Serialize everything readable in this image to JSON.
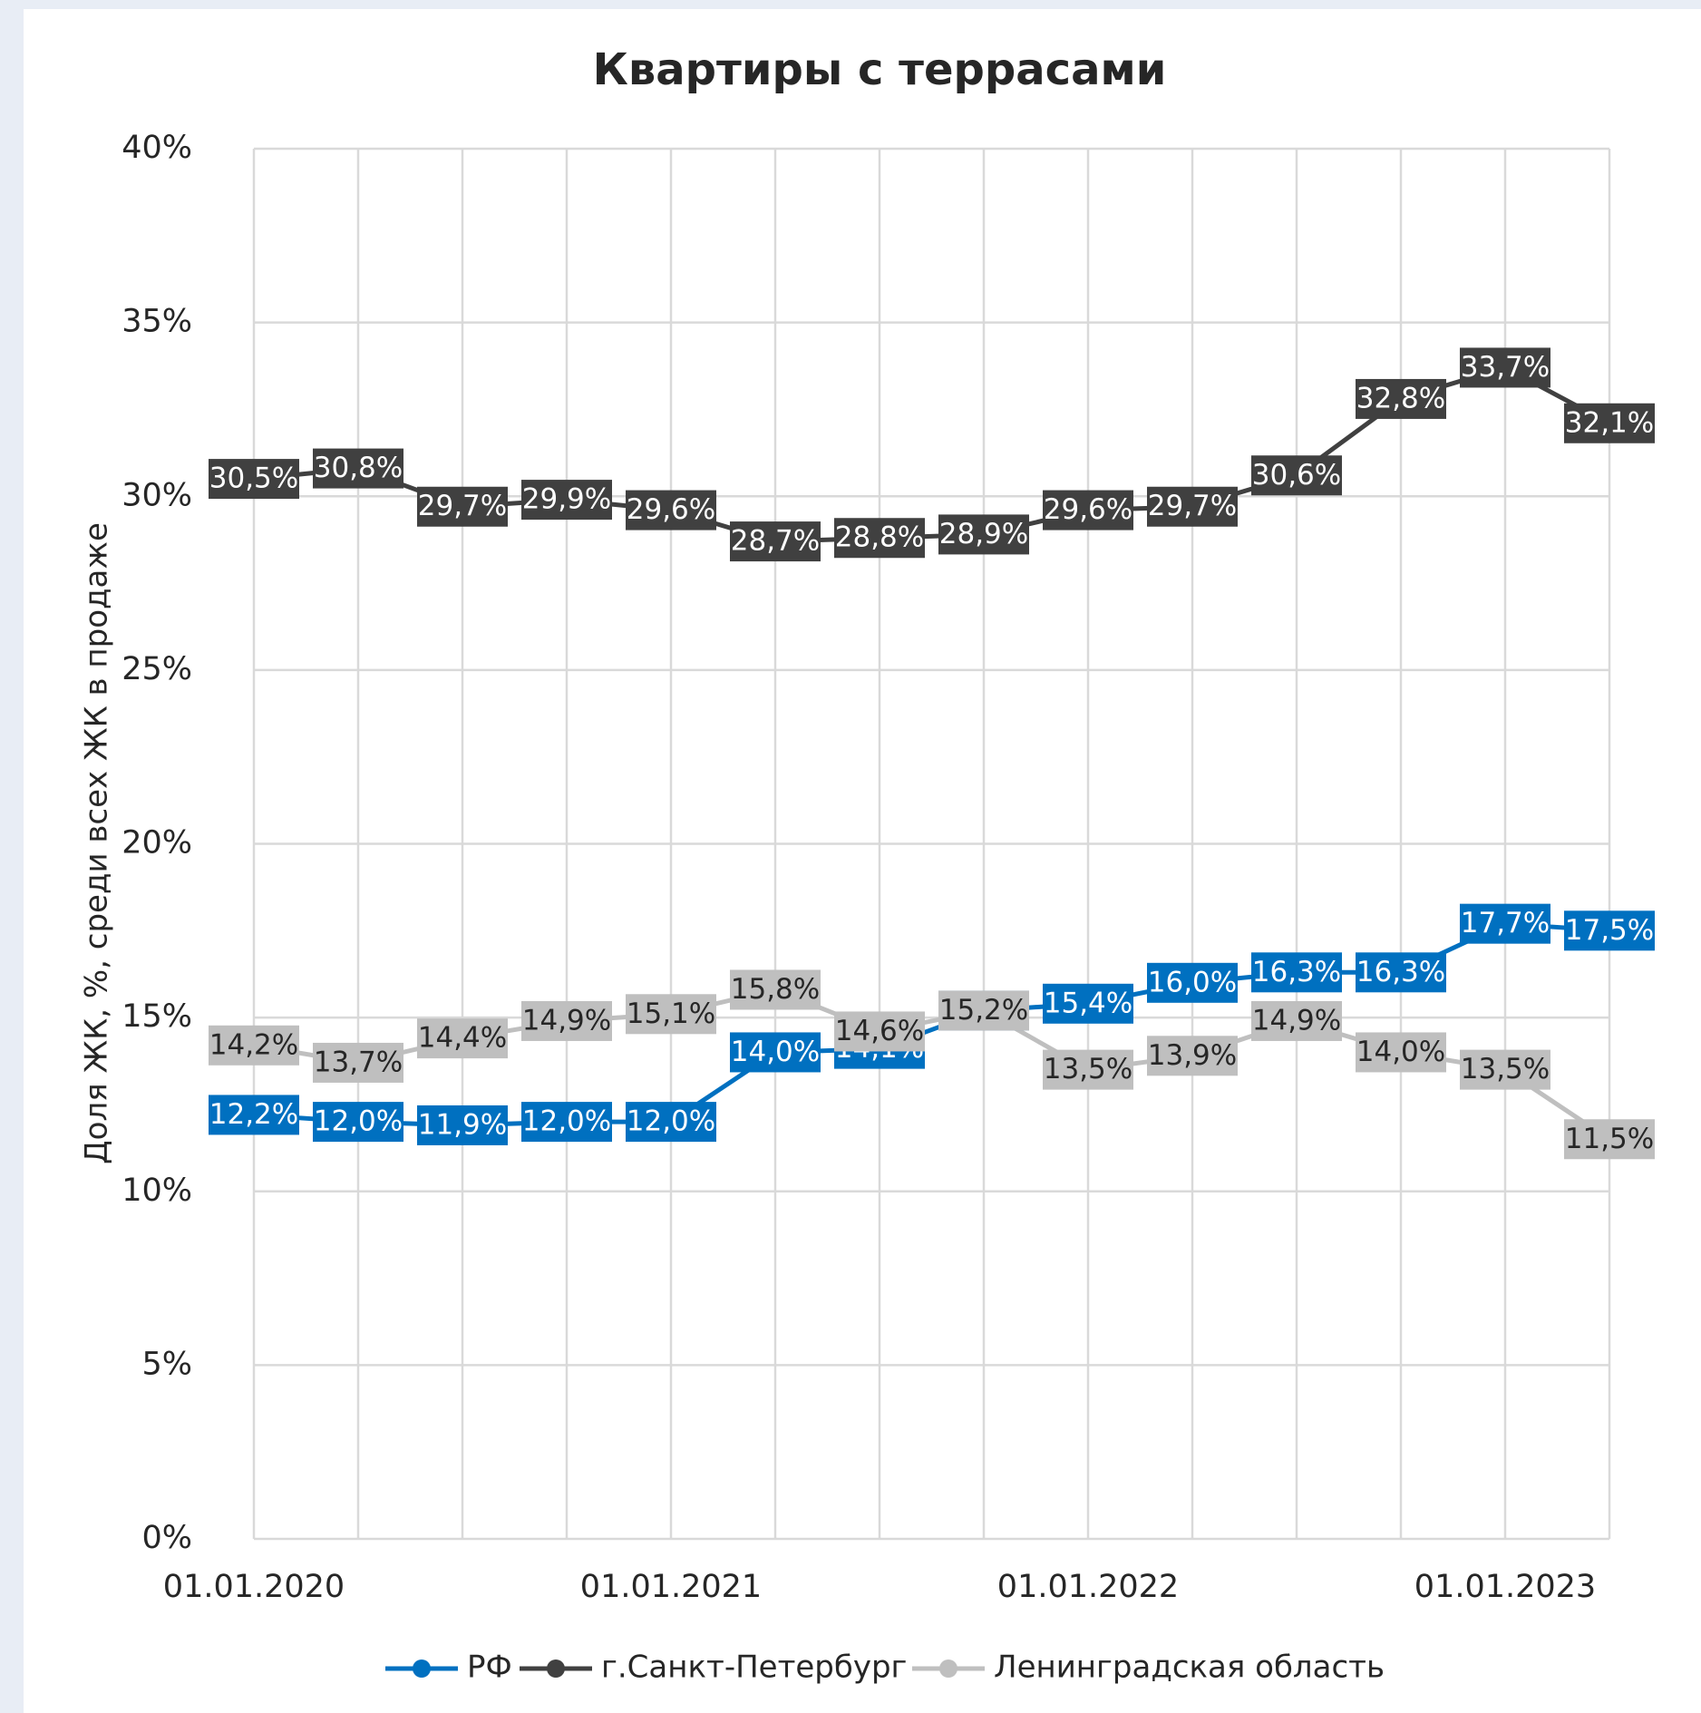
{
  "chart_data": {
    "type": "line",
    "title": "Квартиры с террасами",
    "ylabel": "Доля ЖК, %, среди всех ЖК в продаже",
    "categories": [
      "01.01.2020",
      null,
      null,
      null,
      "01.01.2021",
      null,
      null,
      null,
      "01.01.2022",
      null,
      null,
      null,
      "01.01.2023",
      null
    ],
    "ylim": [
      0,
      40
    ],
    "yticks": [
      {
        "value": 0,
        "label": "0%"
      },
      {
        "value": 5,
        "label": "5%"
      },
      {
        "value": 10,
        "label": "10%"
      },
      {
        "value": 15,
        "label": "15%"
      },
      {
        "value": 20,
        "label": "20%"
      },
      {
        "value": 25,
        "label": "25%"
      },
      {
        "value": 30,
        "label": "30%"
      },
      {
        "value": 35,
        "label": "35%"
      },
      {
        "value": 40,
        "label": "40%"
      }
    ],
    "grid": true,
    "legend": "bottom",
    "series": [
      {
        "name": "РФ",
        "color": "#0070c0",
        "label_color": "#ffffff",
        "values": [
          12.2,
          12.0,
          11.9,
          12.0,
          12.0,
          14.0,
          14.1,
          15.2,
          15.4,
          16.0,
          16.3,
          16.3,
          17.7,
          17.5
        ],
        "value_labels": [
          "12,2%",
          "12,0%",
          "11,9%",
          "12,0%",
          "12,0%",
          "14,0%",
          "14,1%",
          "15,2%",
          "15,4%",
          "16,0%",
          "16,3%",
          "16,3%",
          "17,7%",
          "17,5%"
        ]
      },
      {
        "name": "г.Санкт-Петербург",
        "color": "#404040",
        "label_color": "#ffffff",
        "values": [
          30.5,
          30.8,
          29.7,
          29.9,
          29.6,
          28.7,
          28.8,
          28.9,
          29.6,
          29.7,
          30.6,
          32.8,
          33.7,
          32.1
        ],
        "value_labels": [
          "30,5%",
          "30,8%",
          "29,7%",
          "29,9%",
          "29,6%",
          "28,7%",
          "28,8%",
          "28,9%",
          "29,6%",
          "29,7%",
          "30,6%",
          "32,8%",
          "33,7%",
          "32,1%"
        ]
      },
      {
        "name": "Ленинградская область",
        "color": "#bfbfbf",
        "label_color": "#262626",
        "values": [
          14.2,
          13.7,
          14.4,
          14.9,
          15.1,
          15.8,
          14.6,
          15.2,
          13.5,
          13.9,
          14.9,
          14.0,
          13.5,
          11.5
        ],
        "value_labels": [
          "14,2%",
          "13,7%",
          "14,4%",
          "14,9%",
          "15,1%",
          "15,8%",
          "14,6%",
          "15,2%",
          "13,5%",
          "13,9%",
          "14,9%",
          "14,0%",
          "13,5%",
          "11,5%"
        ]
      }
    ]
  }
}
